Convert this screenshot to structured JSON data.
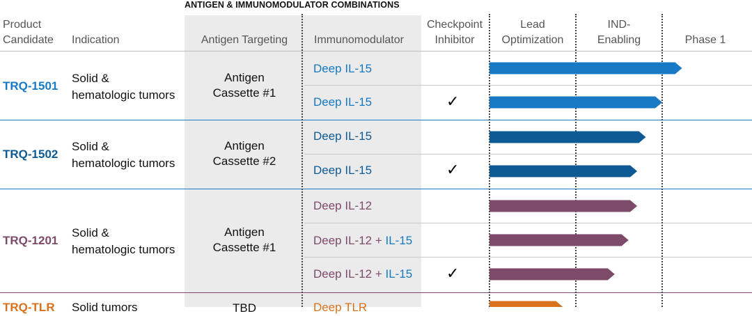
{
  "title": "ANTIGEN & IMMUNOMODULATOR COMBINATIONS",
  "headers": {
    "product": [
      "Product",
      "Candidate"
    ],
    "indication": "Indication",
    "antigen": "Antigen Targeting",
    "immunomodulator": "Immunomodulator",
    "checkpoint": [
      "Checkpoint",
      "Inhibitor"
    ],
    "stage1": [
      "Lead",
      "Optimization"
    ],
    "stage2": [
      "IND-",
      "Enabling"
    ],
    "stage3": "Phase 1"
  },
  "groups": [
    {
      "product": "TRQ-1501",
      "indication": [
        "Solid &",
        "hematologic tumors"
      ],
      "antigen": [
        "Antigen",
        "Cassette #1"
      ]
    },
    {
      "product": "TRQ-1502",
      "indication": [
        "Solid &",
        "hematologic tumors"
      ],
      "antigen": [
        "Antigen",
        "Cassette #2"
      ]
    },
    {
      "product": "TRQ-1201",
      "indication": [
        "Solid &",
        "hematologic tumors"
      ],
      "antigen": [
        "Antigen",
        "Cassette #1"
      ]
    },
    {
      "product": "TRQ-TLR",
      "indication": [
        "Solid tumors",
        ""
      ],
      "antigen": [
        "TBD",
        ""
      ]
    }
  ],
  "rows": [
    {
      "immunomodulator": [
        "Deep IL-15"
      ],
      "checkpoint": "",
      "progress": 2.23
    },
    {
      "immunomodulator": [
        "Deep IL-15"
      ],
      "checkpoint": "✓",
      "progress": 2.0
    },
    {
      "immunomodulator": [
        "Deep IL-15"
      ],
      "checkpoint": "",
      "progress": 1.81
    },
    {
      "immunomodulator": [
        "Deep IL-15"
      ],
      "checkpoint": "✓",
      "progress": 1.71
    },
    {
      "immunomodulator": [
        "Deep IL-12"
      ],
      "checkpoint": "",
      "progress": 1.71
    },
    {
      "immunomodulator": [
        "Deep IL-12",
        " + ",
        "IL-15"
      ],
      "checkpoint": "",
      "progress": 1.61
    },
    {
      "immunomodulator": [
        "Deep IL-12",
        " + ",
        "IL-15"
      ],
      "checkpoint": "✓",
      "progress": 1.45
    },
    {
      "immunomodulator": [
        "Deep TLR"
      ],
      "checkpoint": "",
      "progress": 0.85
    }
  ],
  "colors": {
    "trq1501": "#1879c4",
    "trq1502": "#0d5a94",
    "trq1201": "#7d4a6a",
    "trqtlr": "#d9711c",
    "il15_text": "#1479c0",
    "il12_text": "#7d4a6a"
  },
  "chart_data": {
    "type": "bar",
    "orientation": "horizontal",
    "stages": [
      "Lead Optimization",
      "IND-Enabling",
      "Phase 1"
    ],
    "categories": [
      "TRQ-1501 Deep IL-15",
      "TRQ-1501 Deep IL-15 + Checkpoint Inhibitor",
      "TRQ-1502 Deep IL-15",
      "TRQ-1502 Deep IL-15 + Checkpoint Inhibitor",
      "TRQ-1201 Deep IL-12",
      "TRQ-1201 Deep IL-12 + IL-15",
      "TRQ-1201 Deep IL-12 + IL-15 + Checkpoint Inhibitor",
      "TRQ-TLR Deep TLR"
    ],
    "values": [
      2.23,
      2.0,
      1.81,
      1.71,
      1.71,
      1.61,
      1.45,
      0.85
    ],
    "xlim": [
      0,
      2.7
    ]
  }
}
